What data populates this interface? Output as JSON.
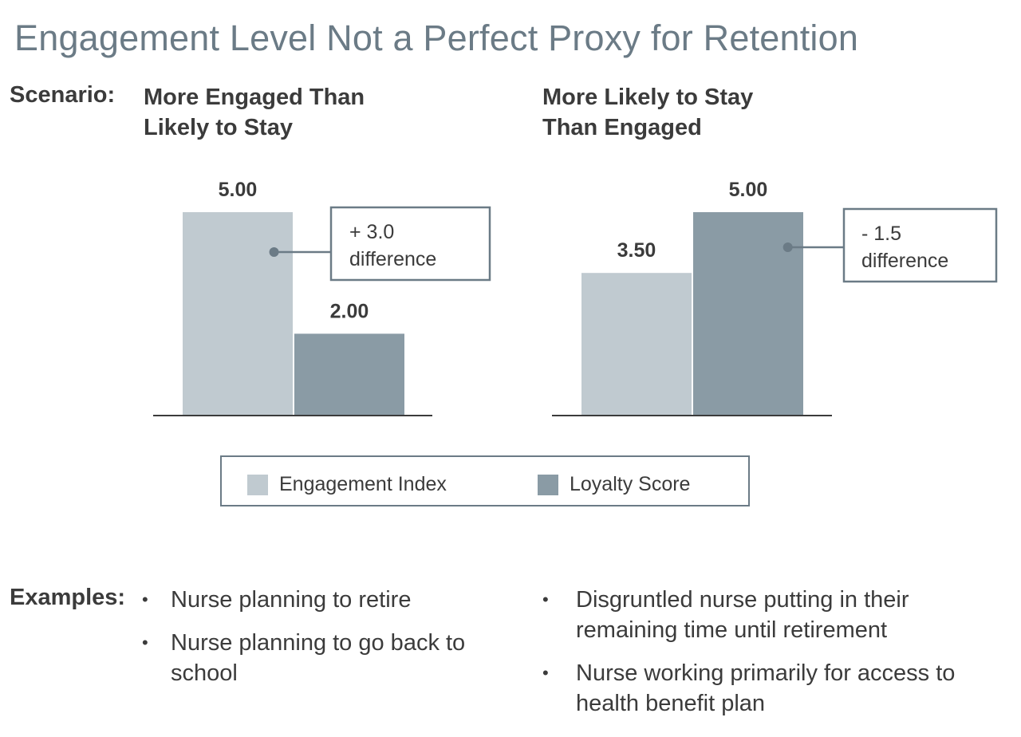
{
  "title": "Engagement Level Not a Perfect Proxy for Retention",
  "scenario_label": "Scenario:",
  "scenarios": [
    {
      "title": "More Engaged Than\nLikely to Stay"
    },
    {
      "title": "More Likely to Stay\nThan Engaged"
    }
  ],
  "colors": {
    "engagement": "#c0cad0",
    "loyalty": "#8a9ba5",
    "accent": "#6b7b86"
  },
  "chart_data": [
    {
      "type": "bar",
      "categories": [
        "Engagement Index",
        "Loyalty Score"
      ],
      "values": [
        5.0,
        2.0
      ],
      "value_labels": [
        "5.00",
        "2.00"
      ],
      "ylim": [
        0,
        5
      ],
      "annotation": {
        "line1": "+ 3.0",
        "line2": "difference"
      },
      "title": "More Engaged Than Likely to Stay",
      "grid": false
    },
    {
      "type": "bar",
      "categories": [
        "Engagement Index",
        "Loyalty Score"
      ],
      "values": [
        3.5,
        5.0
      ],
      "value_labels": [
        "3.50",
        "5.00"
      ],
      "ylim": [
        0,
        5
      ],
      "annotation": {
        "line1": "- 1.5",
        "line2": "difference"
      },
      "title": "More Likely to Stay Than Engaged",
      "grid": false
    }
  ],
  "legend": {
    "items": [
      "Engagement Index",
      "Loyalty Score"
    ]
  },
  "examples_label": "Examples:",
  "examples": {
    "left": [
      "Nurse planning to retire",
      "Nurse planning to go back to school"
    ],
    "right": [
      "Disgruntled nurse putting in their remaining time until retirement",
      "Nurse working primarily for access to health benefit plan"
    ]
  }
}
